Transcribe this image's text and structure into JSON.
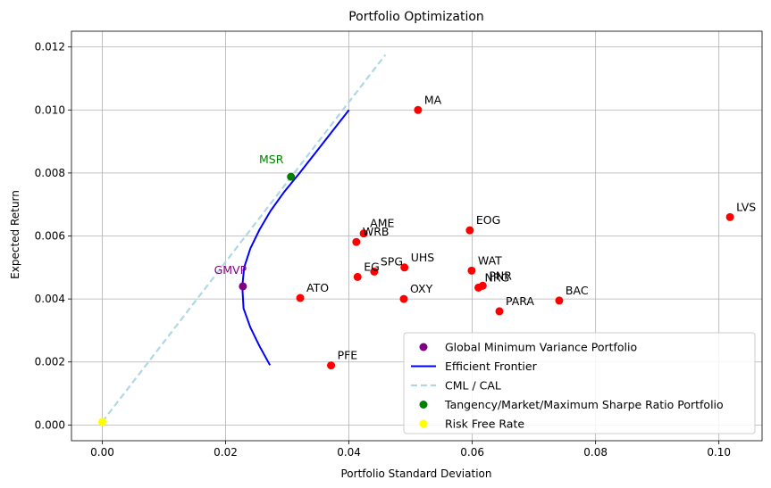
{
  "chart_data": {
    "type": "scatter",
    "title": "Portfolio Optimization",
    "xlabel": "Portfolio Standard Deviation",
    "ylabel": "Expected Return",
    "xlim": [
      -0.005,
      0.107
    ],
    "ylim": [
      -0.0005,
      0.0125
    ],
    "xticks": [
      0.0,
      0.02,
      0.04,
      0.06,
      0.08,
      0.1
    ],
    "xtick_labels": [
      "0.00",
      "0.02",
      "0.04",
      "0.06",
      "0.08",
      "0.10"
    ],
    "yticks": [
      0.0,
      0.002,
      0.004,
      0.006,
      0.008,
      0.01,
      0.012
    ],
    "ytick_labels": [
      "0.000",
      "0.002",
      "0.004",
      "0.006",
      "0.008",
      "0.010",
      "0.012"
    ],
    "grid": true,
    "legend_position": "lower-right",
    "colors": {
      "assets": "#ff0000",
      "gmvp": "#800080",
      "frontier": "#0000ff",
      "cml": "#add8e6",
      "msr": "#008000",
      "risk_free": "#ffff00"
    },
    "assets": [
      {
        "label": "MA",
        "x": 0.0512,
        "y": 0.01
      },
      {
        "label": "LVS",
        "x": 0.1018,
        "y": 0.0066
      },
      {
        "label": "EOG",
        "x": 0.0596,
        "y": 0.00618
      },
      {
        "label": "AME",
        "x": 0.0424,
        "y": 0.00608
      },
      {
        "label": "WRB",
        "x": 0.0412,
        "y": 0.00581
      },
      {
        "label": "UHS",
        "x": 0.049,
        "y": 0.005
      },
      {
        "label": "SPG",
        "x": 0.0441,
        "y": 0.00487
      },
      {
        "label": "EG",
        "x": 0.0414,
        "y": 0.0047
      },
      {
        "label": "WAT",
        "x": 0.0599,
        "y": 0.0049
      },
      {
        "label": "PNR",
        "x": 0.0617,
        "y": 0.00442
      },
      {
        "label": "NRG",
        "x": 0.061,
        "y": 0.00436
      },
      {
        "label": "ATO",
        "x": 0.0321,
        "y": 0.00403
      },
      {
        "label": "OXY",
        "x": 0.0489,
        "y": 0.004
      },
      {
        "label": "BAC",
        "x": 0.0741,
        "y": 0.00395
      },
      {
        "label": "PARA",
        "x": 0.0644,
        "y": 0.00361
      },
      {
        "label": "PFE",
        "x": 0.0371,
        "y": 0.00189
      }
    ],
    "gmvp": {
      "label": "GMVP",
      "x": 0.0228,
      "y": 0.0044
    },
    "msr": {
      "label": "MSR",
      "x": 0.0306,
      "y": 0.00788
    },
    "risk_free": {
      "x": 0.0,
      "y": 0.0001
    },
    "efficient_frontier": {
      "x": [
        0.0272,
        0.0255,
        0.024,
        0.0229,
        0.0227,
        0.023,
        0.024,
        0.0255,
        0.0273,
        0.0295,
        0.032,
        0.0348,
        0.0376,
        0.04
      ],
      "y": [
        0.0019,
        0.0025,
        0.0031,
        0.0037,
        0.0044,
        0.005,
        0.0056,
        0.0062,
        0.0068,
        0.0074,
        0.008,
        0.0087,
        0.0094,
        0.01
      ]
    },
    "cml": {
      "x": [
        0.0,
        0.0459
      ],
      "y": [
        0.0001,
        0.01175
      ]
    },
    "legend": [
      {
        "key": "gmvp",
        "label": "Global Minimum Variance Portfolio"
      },
      {
        "key": "frontier",
        "label": "Efficient Frontier"
      },
      {
        "key": "cml",
        "label": "CML / CAL"
      },
      {
        "key": "msr",
        "label": "Tangency/Market/Maximum Sharpe Ratio Portfolio"
      },
      {
        "key": "risk_free",
        "label": "Risk Free Rate"
      }
    ]
  }
}
